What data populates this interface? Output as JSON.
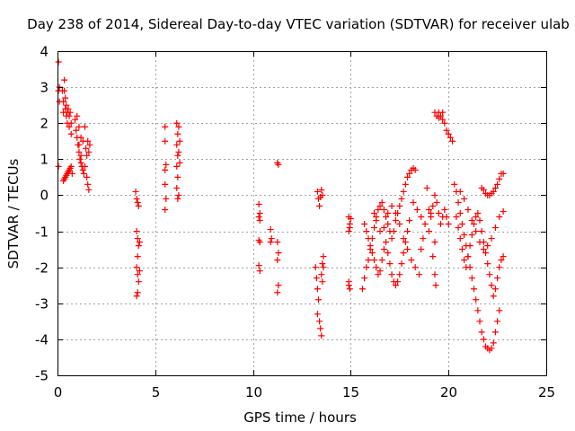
{
  "chart_data": {
    "type": "scatter",
    "title": "Day 238 of 2014, Sidereal Day-to-day VTEC variation (SDTVAR) for receiver ulab",
    "xlabel": "GPS time / hours",
    "ylabel": "SDTVAR / TECUs",
    "xlim": [
      0,
      25
    ],
    "ylim": [
      -5,
      4
    ],
    "xticks": [
      0,
      5,
      10,
      15,
      20,
      25
    ],
    "yticks": [
      -5,
      -4,
      -3,
      -2,
      -1,
      0,
      1,
      2,
      3,
      4
    ],
    "grid": true,
    "marker": "+",
    "color": "#ff0000",
    "series": [
      {
        "name": "ulab",
        "points": [
          [
            0.05,
            3.7
          ],
          [
            0.05,
            2.9
          ],
          [
            0.1,
            3.0
          ],
          [
            0.1,
            2.6
          ],
          [
            0.05,
            0.8
          ],
          [
            0.25,
            2.9
          ],
          [
            0.3,
            2.6
          ],
          [
            0.3,
            2.3
          ],
          [
            0.35,
            3.2
          ],
          [
            0.35,
            2.9
          ],
          [
            0.4,
            2.7
          ],
          [
            0.4,
            2.4
          ],
          [
            0.45,
            2.2
          ],
          [
            0.45,
            2.5
          ],
          [
            0.5,
            2.3
          ],
          [
            0.5,
            2.0
          ],
          [
            0.55,
            2.4
          ],
          [
            0.6,
            2.2
          ],
          [
            0.6,
            1.9
          ],
          [
            0.65,
            2.3
          ],
          [
            0.7,
            2.0
          ],
          [
            0.7,
            1.7
          ],
          [
            0.3,
            0.4
          ],
          [
            0.35,
            0.45
          ],
          [
            0.4,
            0.5
          ],
          [
            0.45,
            0.55
          ],
          [
            0.5,
            0.6
          ],
          [
            0.55,
            0.65
          ],
          [
            0.6,
            0.7
          ],
          [
            0.65,
            0.75
          ],
          [
            0.7,
            0.8
          ],
          [
            0.75,
            0.6
          ],
          [
            0.9,
            2.1
          ],
          [
            0.95,
            1.8
          ],
          [
            1.0,
            1.6
          ],
          [
            1.0,
            2.2
          ],
          [
            1.05,
            1.4
          ],
          [
            1.1,
            1.2
          ],
          [
            1.1,
            1.9
          ],
          [
            1.15,
            1.0
          ],
          [
            1.2,
            0.9
          ],
          [
            1.2,
            1.6
          ],
          [
            1.25,
            0.8
          ],
          [
            1.3,
            0.7
          ],
          [
            1.3,
            1.5
          ],
          [
            1.35,
            0.6
          ],
          [
            1.4,
            0.8
          ],
          [
            1.4,
            1.9
          ],
          [
            1.45,
            1.3
          ],
          [
            1.5,
            0.5
          ],
          [
            1.5,
            1.1
          ],
          [
            1.55,
            0.3
          ],
          [
            1.55,
            1.5
          ],
          [
            1.6,
            0.15
          ],
          [
            1.6,
            1.2
          ],
          [
            1.65,
            1.4
          ],
          [
            1.1,
            1.4
          ],
          [
            1.2,
            1.1
          ],
          [
            4.0,
            0.1
          ],
          [
            4.05,
            -0.1
          ],
          [
            4.1,
            -0.2
          ],
          [
            4.15,
            -0.3
          ],
          [
            4.05,
            -1.0
          ],
          [
            4.1,
            -1.2
          ],
          [
            4.15,
            -1.4
          ],
          [
            4.1,
            -1.7
          ],
          [
            4.05,
            -2.0
          ],
          [
            4.1,
            -2.2
          ],
          [
            4.15,
            -2.4
          ],
          [
            4.1,
            -2.7
          ],
          [
            4.05,
            -2.8
          ],
          [
            4.2,
            -1.3
          ],
          [
            4.2,
            -2.1
          ],
          [
            5.5,
            1.9
          ],
          [
            5.5,
            1.5
          ],
          [
            5.55,
            0.85
          ],
          [
            5.5,
            0.7
          ],
          [
            5.5,
            0.3
          ],
          [
            5.55,
            -0.1
          ],
          [
            5.5,
            -0.4
          ],
          [
            6.1,
            2.0
          ],
          [
            6.15,
            1.7
          ],
          [
            6.1,
            1.4
          ],
          [
            6.15,
            1.1
          ],
          [
            6.1,
            0.8
          ],
          [
            6.15,
            0.5
          ],
          [
            6.1,
            0.2
          ],
          [
            6.15,
            -0.1
          ],
          [
            6.2,
            0.0
          ],
          [
            6.2,
            1.9
          ],
          [
            6.25,
            1.5
          ],
          [
            6.2,
            1.2
          ],
          [
            6.25,
            0.9
          ],
          [
            10.3,
            -0.25
          ],
          [
            10.35,
            -0.5
          ],
          [
            10.3,
            -0.6
          ],
          [
            10.35,
            -0.7
          ],
          [
            10.3,
            -1.25
          ],
          [
            10.35,
            -1.3
          ],
          [
            10.3,
            -1.95
          ],
          [
            10.35,
            -2.1
          ],
          [
            10.9,
            -0.95
          ],
          [
            10.95,
            -1.2
          ],
          [
            10.9,
            -1.3
          ],
          [
            11.25,
            0.9
          ],
          [
            11.3,
            0.85
          ],
          [
            11.25,
            -1.3
          ],
          [
            11.3,
            -1.6
          ],
          [
            11.25,
            -1.8
          ],
          [
            11.3,
            -2.5
          ],
          [
            11.25,
            -2.7
          ],
          [
            13.2,
            -2.0
          ],
          [
            13.25,
            -2.3
          ],
          [
            13.3,
            -2.6
          ],
          [
            13.35,
            -2.9
          ],
          [
            13.3,
            -3.3
          ],
          [
            13.4,
            -3.5
          ],
          [
            13.45,
            -3.7
          ],
          [
            13.5,
            -3.9
          ],
          [
            13.5,
            -2.2
          ],
          [
            13.55,
            -2.4
          ],
          [
            13.6,
            -1.7
          ],
          [
            13.6,
            -2.0
          ],
          [
            13.55,
            -1.9
          ],
          [
            13.3,
            0.1
          ],
          [
            13.35,
            -0.1
          ],
          [
            13.4,
            -0.3
          ],
          [
            13.45,
            -0.05
          ],
          [
            13.5,
            0.15
          ],
          [
            13.55,
            0.0
          ],
          [
            14.9,
            -0.6
          ],
          [
            14.95,
            -0.8
          ],
          [
            14.9,
            -1.0
          ],
          [
            14.95,
            -0.9
          ],
          [
            15.0,
            -0.65
          ],
          [
            14.9,
            -2.4
          ],
          [
            14.95,
            -2.6
          ],
          [
            14.9,
            -2.5
          ],
          [
            15.6,
            -2.6
          ],
          [
            15.7,
            -2.3
          ],
          [
            15.8,
            -2.0
          ],
          [
            15.9,
            -1.8
          ],
          [
            16.0,
            -1.5
          ],
          [
            16.1,
            -1.2
          ],
          [
            16.2,
            -0.9
          ],
          [
            16.3,
            -0.6
          ],
          [
            16.4,
            -0.4
          ],
          [
            16.5,
            -0.3
          ],
          [
            16.6,
            -0.2
          ],
          [
            16.7,
            -0.4
          ],
          [
            16.8,
            -0.6
          ],
          [
            16.9,
            -0.8
          ],
          [
            17.0,
            -1.0
          ],
          [
            17.1,
            -1.2
          ],
          [
            17.2,
            -1.0
          ],
          [
            17.3,
            -0.7
          ],
          [
            17.4,
            -0.5
          ],
          [
            17.5,
            -0.3
          ],
          [
            17.6,
            -0.1
          ],
          [
            17.7,
            0.1
          ],
          [
            17.8,
            0.3
          ],
          [
            17.9,
            0.5
          ],
          [
            18.0,
            0.6
          ],
          [
            18.1,
            0.7
          ],
          [
            18.2,
            0.75
          ],
          [
            18.3,
            0.7
          ],
          [
            15.7,
            -0.8
          ],
          [
            15.8,
            -1.0
          ],
          [
            15.9,
            -1.2
          ],
          [
            16.0,
            -1.4
          ],
          [
            16.1,
            -1.6
          ],
          [
            16.2,
            -1.8
          ],
          [
            16.3,
            -2.0
          ],
          [
            16.4,
            -2.2
          ],
          [
            16.5,
            -2.1
          ],
          [
            16.6,
            -1.8
          ],
          [
            16.7,
            -1.5
          ],
          [
            16.8,
            -1.3
          ],
          [
            16.9,
            -1.6
          ],
          [
            17.0,
            -1.9
          ],
          [
            17.1,
            -2.2
          ],
          [
            17.2,
            -2.4
          ],
          [
            17.3,
            -2.5
          ],
          [
            17.4,
            -2.4
          ],
          [
            17.5,
            -2.2
          ],
          [
            17.6,
            -1.9
          ],
          [
            17.7,
            -1.6
          ],
          [
            17.8,
            -1.3
          ],
          [
            17.9,
            -1.0
          ],
          [
            18.0,
            -0.7
          ],
          [
            16.2,
            -0.5
          ],
          [
            16.3,
            -0.7
          ],
          [
            16.5,
            -1.0
          ],
          [
            16.7,
            -0.9
          ],
          [
            16.9,
            -0.5
          ],
          [
            17.1,
            -0.3
          ],
          [
            17.3,
            -0.5
          ],
          [
            17.5,
            -0.8
          ],
          [
            17.7,
            -1.2
          ],
          [
            17.9,
            -1.5
          ],
          [
            18.1,
            -1.8
          ],
          [
            18.3,
            -2.0
          ],
          [
            18.5,
            -2.2
          ],
          [
            18.2,
            -0.2
          ],
          [
            18.4,
            -0.4
          ],
          [
            18.6,
            -0.6
          ],
          [
            18.8,
            -0.8
          ],
          [
            19.0,
            -1.0
          ],
          [
            19.1,
            -0.6
          ],
          [
            19.2,
            -0.3
          ],
          [
            19.3,
            0.0
          ],
          [
            19.4,
            -0.2
          ],
          [
            19.5,
            -0.5
          ],
          [
            19.6,
            -0.8
          ],
          [
            19.7,
            -0.6
          ],
          [
            19.8,
            -0.4
          ],
          [
            19.9,
            -0.6
          ],
          [
            20.0,
            -0.8
          ],
          [
            18.9,
            0.2
          ],
          [
            19.0,
            -0.4
          ],
          [
            19.3,
            -1.3
          ],
          [
            19.2,
            -1.7
          ],
          [
            19.3,
            -2.2
          ],
          [
            19.35,
            -2.5
          ],
          [
            19.1,
            -0.5
          ],
          [
            18.6,
            -1.5
          ],
          [
            18.7,
            -1.2
          ],
          [
            19.3,
            2.3
          ],
          [
            19.4,
            2.2
          ],
          [
            19.5,
            2.15
          ],
          [
            19.6,
            2.2
          ],
          [
            19.7,
            2.1
          ],
          [
            19.8,
            2.0
          ],
          [
            19.9,
            1.8
          ],
          [
            20.0,
            1.7
          ],
          [
            20.1,
            1.6
          ],
          [
            20.2,
            1.5
          ],
          [
            19.5,
            2.3
          ],
          [
            19.7,
            2.3
          ],
          [
            20.3,
            0.3
          ],
          [
            20.4,
            0.1
          ],
          [
            20.5,
            -0.2
          ],
          [
            20.6,
            -0.5
          ],
          [
            20.7,
            -0.8
          ],
          [
            20.8,
            -1.1
          ],
          [
            20.9,
            -1.4
          ],
          [
            21.0,
            -1.7
          ],
          [
            21.1,
            -2.0
          ],
          [
            21.2,
            -2.3
          ],
          [
            21.3,
            -2.6
          ],
          [
            21.4,
            -2.9
          ],
          [
            21.5,
            -3.2
          ],
          [
            21.6,
            -3.5
          ],
          [
            21.7,
            -3.8
          ],
          [
            21.8,
            -4.0
          ],
          [
            21.9,
            -4.2
          ],
          [
            22.0,
            -4.25
          ],
          [
            22.1,
            -4.3
          ],
          [
            22.2,
            -4.25
          ],
          [
            22.3,
            -4.1
          ],
          [
            22.4,
            -3.8
          ],
          [
            22.5,
            -3.5
          ],
          [
            22.6,
            -3.2
          ],
          [
            20.4,
            -0.6
          ],
          [
            20.5,
            -0.9
          ],
          [
            20.6,
            -1.2
          ],
          [
            20.7,
            -1.5
          ],
          [
            20.8,
            -1.8
          ],
          [
            20.9,
            -2.0
          ],
          [
            21.0,
            -1.7
          ],
          [
            21.1,
            -1.4
          ],
          [
            21.2,
            -1.1
          ],
          [
            21.3,
            -0.8
          ],
          [
            21.4,
            -0.6
          ],
          [
            21.5,
            -0.5
          ],
          [
            21.6,
            -0.7
          ],
          [
            21.7,
            -1.0
          ],
          [
            21.8,
            -1.3
          ],
          [
            21.9,
            -1.6
          ],
          [
            22.0,
            -1.9
          ],
          [
            22.1,
            -2.2
          ],
          [
            22.2,
            -2.5
          ],
          [
            22.3,
            -2.8
          ],
          [
            22.4,
            -2.6
          ],
          [
            22.5,
            -2.3
          ],
          [
            22.6,
            -2.0
          ],
          [
            22.7,
            -1.8
          ],
          [
            22.8,
            -1.7
          ],
          [
            20.6,
            0.1
          ],
          [
            20.8,
            -0.1
          ],
          [
            21.0,
            -0.4
          ],
          [
            21.2,
            -0.7
          ],
          [
            21.4,
            -1.0
          ],
          [
            21.6,
            -1.3
          ],
          [
            21.8,
            -1.5
          ],
          [
            22.0,
            -1.4
          ],
          [
            22.2,
            -1.2
          ],
          [
            22.4,
            -0.9
          ],
          [
            22.6,
            -0.6
          ],
          [
            22.8,
            -0.45
          ],
          [
            21.7,
            0.2
          ],
          [
            21.8,
            0.15
          ],
          [
            21.9,
            0.05
          ],
          [
            22.0,
            0.0
          ],
          [
            22.1,
            0.0
          ],
          [
            22.2,
            0.05
          ],
          [
            22.3,
            0.1
          ],
          [
            22.4,
            0.2
          ],
          [
            22.5,
            0.3
          ],
          [
            22.6,
            0.45
          ],
          [
            22.7,
            0.6
          ],
          [
            22.8,
            0.6
          ]
        ]
      }
    ]
  }
}
